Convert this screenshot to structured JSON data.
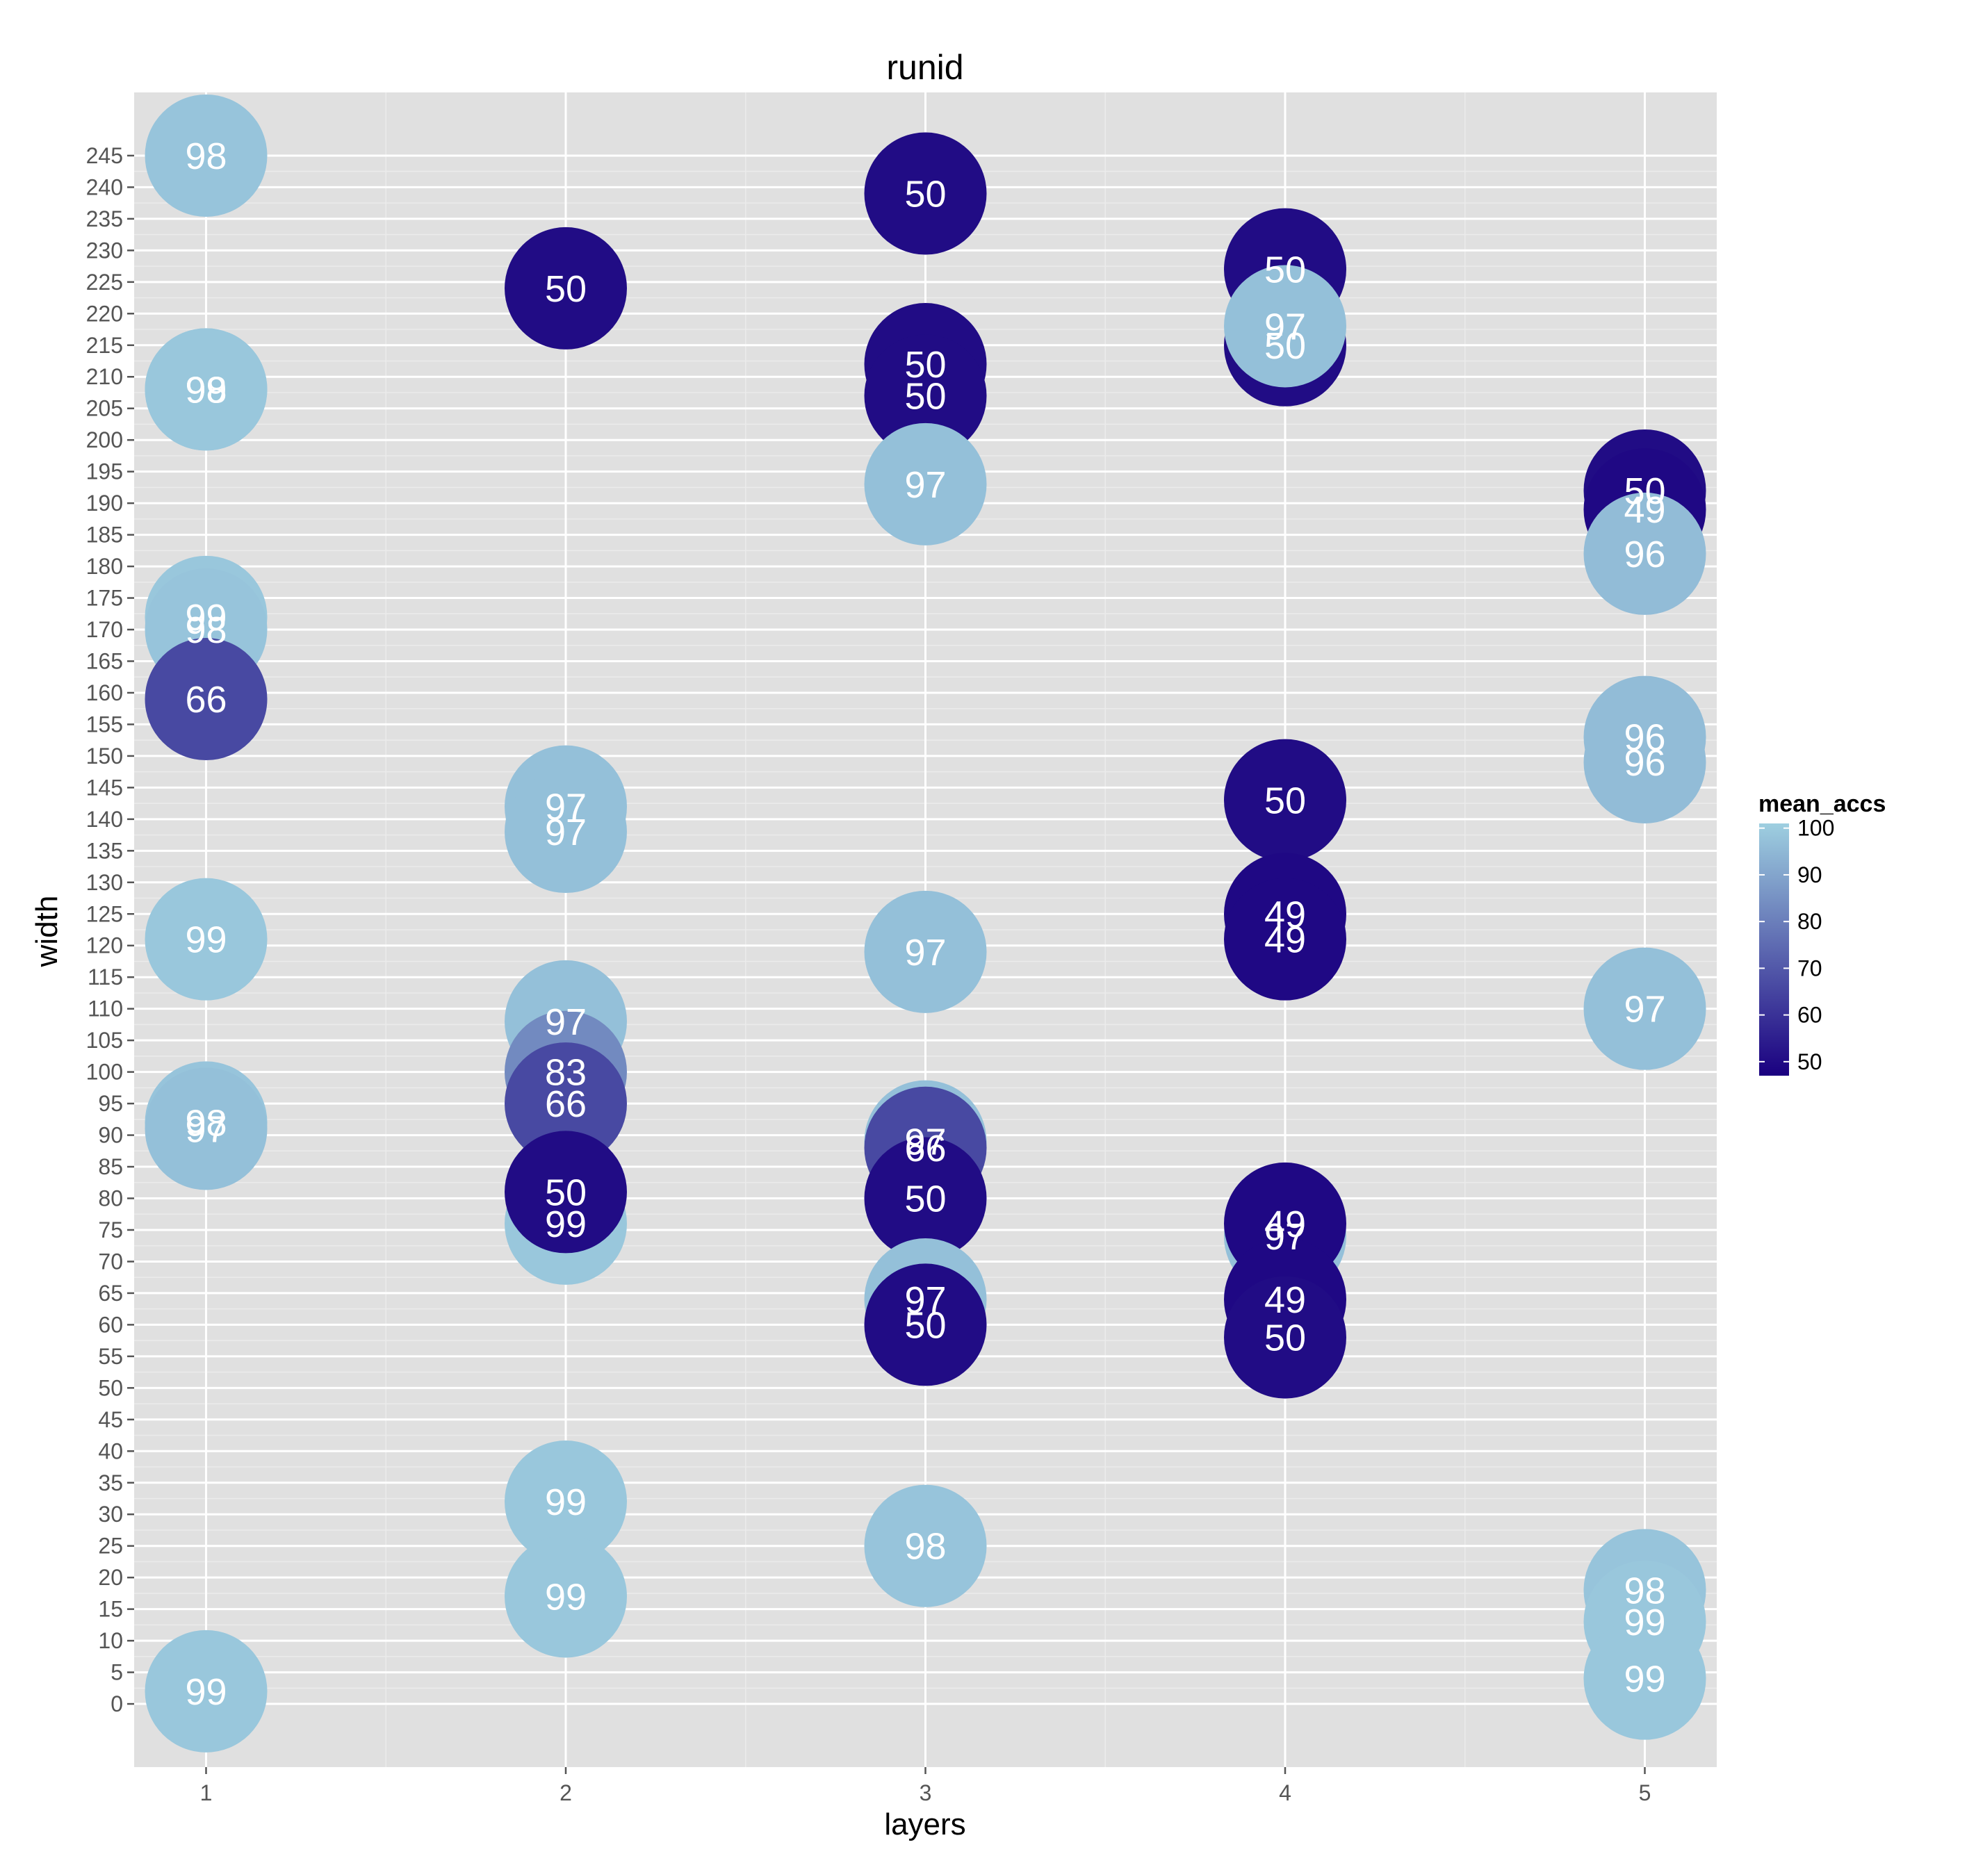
{
  "chart_data": {
    "type": "scatter",
    "title": "runid",
    "xlabel": "layers",
    "ylabel": "width",
    "x_ticks": [
      1,
      2,
      3,
      4,
      5
    ],
    "y_ticks": [
      0,
      5,
      10,
      15,
      20,
      25,
      30,
      35,
      40,
      45,
      50,
      55,
      60,
      65,
      70,
      75,
      80,
      85,
      90,
      95,
      100,
      105,
      110,
      115,
      120,
      125,
      130,
      135,
      140,
      145,
      150,
      155,
      160,
      165,
      170,
      175,
      180,
      185,
      190,
      195,
      200,
      205,
      210,
      215,
      220,
      225,
      230,
      235,
      240,
      245
    ],
    "xlim": [
      0.8,
      5.2
    ],
    "ylim": [
      -10,
      255
    ],
    "grid": true,
    "legend": {
      "title": "mean_accs",
      "position": "right",
      "ticks": [
        50,
        60,
        70,
        80,
        90,
        100
      ],
      "range": [
        47,
        101
      ],
      "color_low": "#1a0080",
      "color_high": "#9ecfe0"
    },
    "points": [
      {
        "x": 1,
        "y": 245,
        "label": "98",
        "value": 98
      },
      {
        "x": 1,
        "y": 208,
        "label": "98",
        "value": 98
      },
      {
        "x": 1,
        "y": 208,
        "label": "99",
        "value": 99
      },
      {
        "x": 1,
        "y": 172,
        "label": "99",
        "value": 99
      },
      {
        "x": 1,
        "y": 170,
        "label": "98",
        "value": 98
      },
      {
        "x": 1,
        "y": 159,
        "label": "66",
        "value": 66
      },
      {
        "x": 1,
        "y": 121,
        "label": "99",
        "value": 99
      },
      {
        "x": 1,
        "y": 92,
        "label": "98",
        "value": 98
      },
      {
        "x": 1,
        "y": 91,
        "label": "97",
        "value": 97
      },
      {
        "x": 1,
        "y": 2,
        "label": "99",
        "value": 99
      },
      {
        "x": 2,
        "y": 224,
        "label": "50",
        "value": 50
      },
      {
        "x": 2,
        "y": 142,
        "label": "97",
        "value": 97
      },
      {
        "x": 2,
        "y": 138,
        "label": "97",
        "value": 97
      },
      {
        "x": 2,
        "y": 108,
        "label": "97",
        "value": 97
      },
      {
        "x": 2,
        "y": 100,
        "label": "83",
        "value": 83
      },
      {
        "x": 2,
        "y": 95,
        "label": "66",
        "value": 66
      },
      {
        "x": 2,
        "y": 76,
        "label": "99",
        "value": 99
      },
      {
        "x": 2,
        "y": 81,
        "label": "50",
        "value": 50
      },
      {
        "x": 2,
        "y": 32,
        "label": "99",
        "value": 99
      },
      {
        "x": 2,
        "y": 17,
        "label": "99",
        "value": 99
      },
      {
        "x": 3,
        "y": 239,
        "label": "50",
        "value": 50
      },
      {
        "x": 3,
        "y": 212,
        "label": "50",
        "value": 50
      },
      {
        "x": 3,
        "y": 207,
        "label": "50",
        "value": 50
      },
      {
        "x": 3,
        "y": 193,
        "label": "97",
        "value": 97
      },
      {
        "x": 3,
        "y": 119,
        "label": "97",
        "value": 97
      },
      {
        "x": 3,
        "y": 89,
        "label": "97",
        "value": 97
      },
      {
        "x": 3,
        "y": 88,
        "label": "66",
        "value": 66
      },
      {
        "x": 3,
        "y": 80,
        "label": "50",
        "value": 50
      },
      {
        "x": 3,
        "y": 64,
        "label": "97",
        "value": 97
      },
      {
        "x": 3,
        "y": 60,
        "label": "50",
        "value": 50
      },
      {
        "x": 3,
        "y": 25,
        "label": "98",
        "value": 98
      },
      {
        "x": 4,
        "y": 227,
        "label": "50",
        "value": 50
      },
      {
        "x": 4,
        "y": 215,
        "label": "50",
        "value": 50
      },
      {
        "x": 4,
        "y": 218,
        "label": "97",
        "value": 97
      },
      {
        "x": 4,
        "y": 143,
        "label": "50",
        "value": 50
      },
      {
        "x": 4,
        "y": 125,
        "label": "49",
        "value": 49
      },
      {
        "x": 4,
        "y": 121,
        "label": "49",
        "value": 49
      },
      {
        "x": 4,
        "y": 74,
        "label": "97",
        "value": 97
      },
      {
        "x": 4,
        "y": 76,
        "label": "49",
        "value": 49
      },
      {
        "x": 4,
        "y": 64,
        "label": "49",
        "value": 49
      },
      {
        "x": 4,
        "y": 58,
        "label": "50",
        "value": 50
      },
      {
        "x": 5,
        "y": 192,
        "label": "50",
        "value": 50
      },
      {
        "x": 5,
        "y": 189,
        "label": "49",
        "value": 49
      },
      {
        "x": 5,
        "y": 182,
        "label": "96",
        "value": 96
      },
      {
        "x": 5,
        "y": 153,
        "label": "96",
        "value": 96
      },
      {
        "x": 5,
        "y": 149,
        "label": "96",
        "value": 96
      },
      {
        "x": 5,
        "y": 110,
        "label": "97",
        "value": 97
      },
      {
        "x": 5,
        "y": 18,
        "label": "98",
        "value": 98
      },
      {
        "x": 5,
        "y": 13,
        "label": "99",
        "value": 99
      },
      {
        "x": 5,
        "y": 4,
        "label": "99",
        "value": 99
      }
    ]
  }
}
